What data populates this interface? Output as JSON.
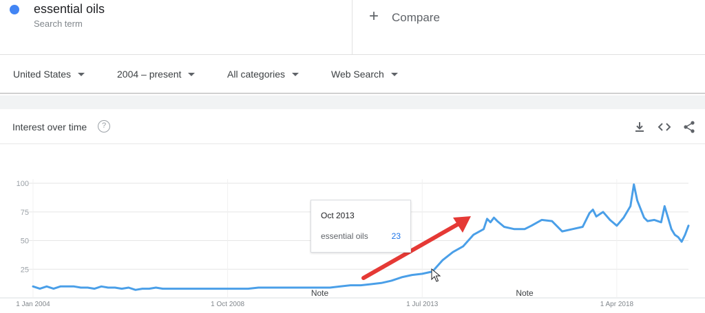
{
  "term": {
    "name": "essential oils",
    "subtitle": "Search term",
    "color": "#4285f4"
  },
  "compare": {
    "label": "Compare"
  },
  "filters": [
    {
      "label": "United States"
    },
    {
      "label": "2004 – present"
    },
    {
      "label": "All categories"
    },
    {
      "label": "Web Search"
    }
  ],
  "card": {
    "title": "Interest over time",
    "help": "?",
    "icons": [
      "download-icon",
      "embed-icon",
      "share-icon"
    ]
  },
  "tooltip": {
    "date": "Oct 2013",
    "series": "essential oils",
    "value": "23"
  },
  "chart_data": {
    "type": "line",
    "title": "",
    "xlabel": "",
    "ylabel": "",
    "ylim": [
      0,
      100
    ],
    "yticks": [
      25,
      50,
      75,
      100
    ],
    "xticks": [
      "1 Jan 2004",
      "1 Oct 2008",
      "1 Jul 2013",
      "1 Apr 2018"
    ],
    "xrange": [
      "2004-01",
      "2019-10"
    ],
    "grid": true,
    "notes": [
      {
        "label": "Note",
        "date": "2011-01"
      },
      {
        "label": "Note",
        "date": "2016-01"
      }
    ],
    "series": [
      {
        "name": "essential oils",
        "color": "#4a9fe8",
        "points": [
          [
            "2004-01",
            10
          ],
          [
            "2004-03",
            8
          ],
          [
            "2004-05",
            10
          ],
          [
            "2004-07",
            8
          ],
          [
            "2004-09",
            10
          ],
          [
            "2004-11",
            10
          ],
          [
            "2005-01",
            10
          ],
          [
            "2005-03",
            9
          ],
          [
            "2005-05",
            9
          ],
          [
            "2005-07",
            8
          ],
          [
            "2005-09",
            10
          ],
          [
            "2005-11",
            9
          ],
          [
            "2006-01",
            9
          ],
          [
            "2006-03",
            8
          ],
          [
            "2006-05",
            9
          ],
          [
            "2006-07",
            7
          ],
          [
            "2006-09",
            8
          ],
          [
            "2006-11",
            8
          ],
          [
            "2007-01",
            9
          ],
          [
            "2007-03",
            8
          ],
          [
            "2007-05",
            8
          ],
          [
            "2007-07",
            8
          ],
          [
            "2007-09",
            8
          ],
          [
            "2007-11",
            8
          ],
          [
            "2008-01",
            8
          ],
          [
            "2008-04",
            8
          ],
          [
            "2008-07",
            8
          ],
          [
            "2008-10",
            8
          ],
          [
            "2009-01",
            8
          ],
          [
            "2009-04",
            8
          ],
          [
            "2009-07",
            9
          ],
          [
            "2009-10",
            9
          ],
          [
            "2010-01",
            9
          ],
          [
            "2010-04",
            9
          ],
          [
            "2010-07",
            9
          ],
          [
            "2010-10",
            9
          ],
          [
            "2011-01",
            9
          ],
          [
            "2011-04",
            9
          ],
          [
            "2011-07",
            10
          ],
          [
            "2011-10",
            11
          ],
          [
            "2012-01",
            11
          ],
          [
            "2012-04",
            12
          ],
          [
            "2012-07",
            13
          ],
          [
            "2012-10",
            15
          ],
          [
            "2013-01",
            18
          ],
          [
            "2013-04",
            20
          ],
          [
            "2013-07",
            21
          ],
          [
            "2013-10",
            23
          ],
          [
            "2014-01",
            33
          ],
          [
            "2014-04",
            40
          ],
          [
            "2014-07",
            45
          ],
          [
            "2014-10",
            55
          ],
          [
            "2015-01",
            60
          ],
          [
            "2015-02",
            69
          ],
          [
            "2015-03",
            66
          ],
          [
            "2015-04",
            70
          ],
          [
            "2015-05",
            67
          ],
          [
            "2015-07",
            62
          ],
          [
            "2015-10",
            60
          ],
          [
            "2016-01",
            60
          ],
          [
            "2016-03",
            63
          ],
          [
            "2016-06",
            68
          ],
          [
            "2016-09",
            67
          ],
          [
            "2016-12",
            58
          ],
          [
            "2017-03",
            60
          ],
          [
            "2017-06",
            62
          ],
          [
            "2017-08",
            74
          ],
          [
            "2017-09",
            77
          ],
          [
            "2017-10",
            71
          ],
          [
            "2017-12",
            75
          ],
          [
            "2018-02",
            68
          ],
          [
            "2018-04",
            63
          ],
          [
            "2018-06",
            70
          ],
          [
            "2018-08",
            80
          ],
          [
            "2018-09",
            99
          ],
          [
            "2018-10",
            85
          ],
          [
            "2018-12",
            70
          ],
          [
            "2019-01",
            67
          ],
          [
            "2019-03",
            68
          ],
          [
            "2019-05",
            66
          ],
          [
            "2019-06",
            80
          ],
          [
            "2019-07",
            70
          ],
          [
            "2019-08",
            60
          ],
          [
            "2019-09",
            55
          ],
          [
            "2019-10",
            53
          ],
          [
            "2019-11",
            49
          ],
          [
            "2019-12",
            55
          ],
          [
            "2020-01",
            63
          ]
        ]
      }
    ]
  }
}
